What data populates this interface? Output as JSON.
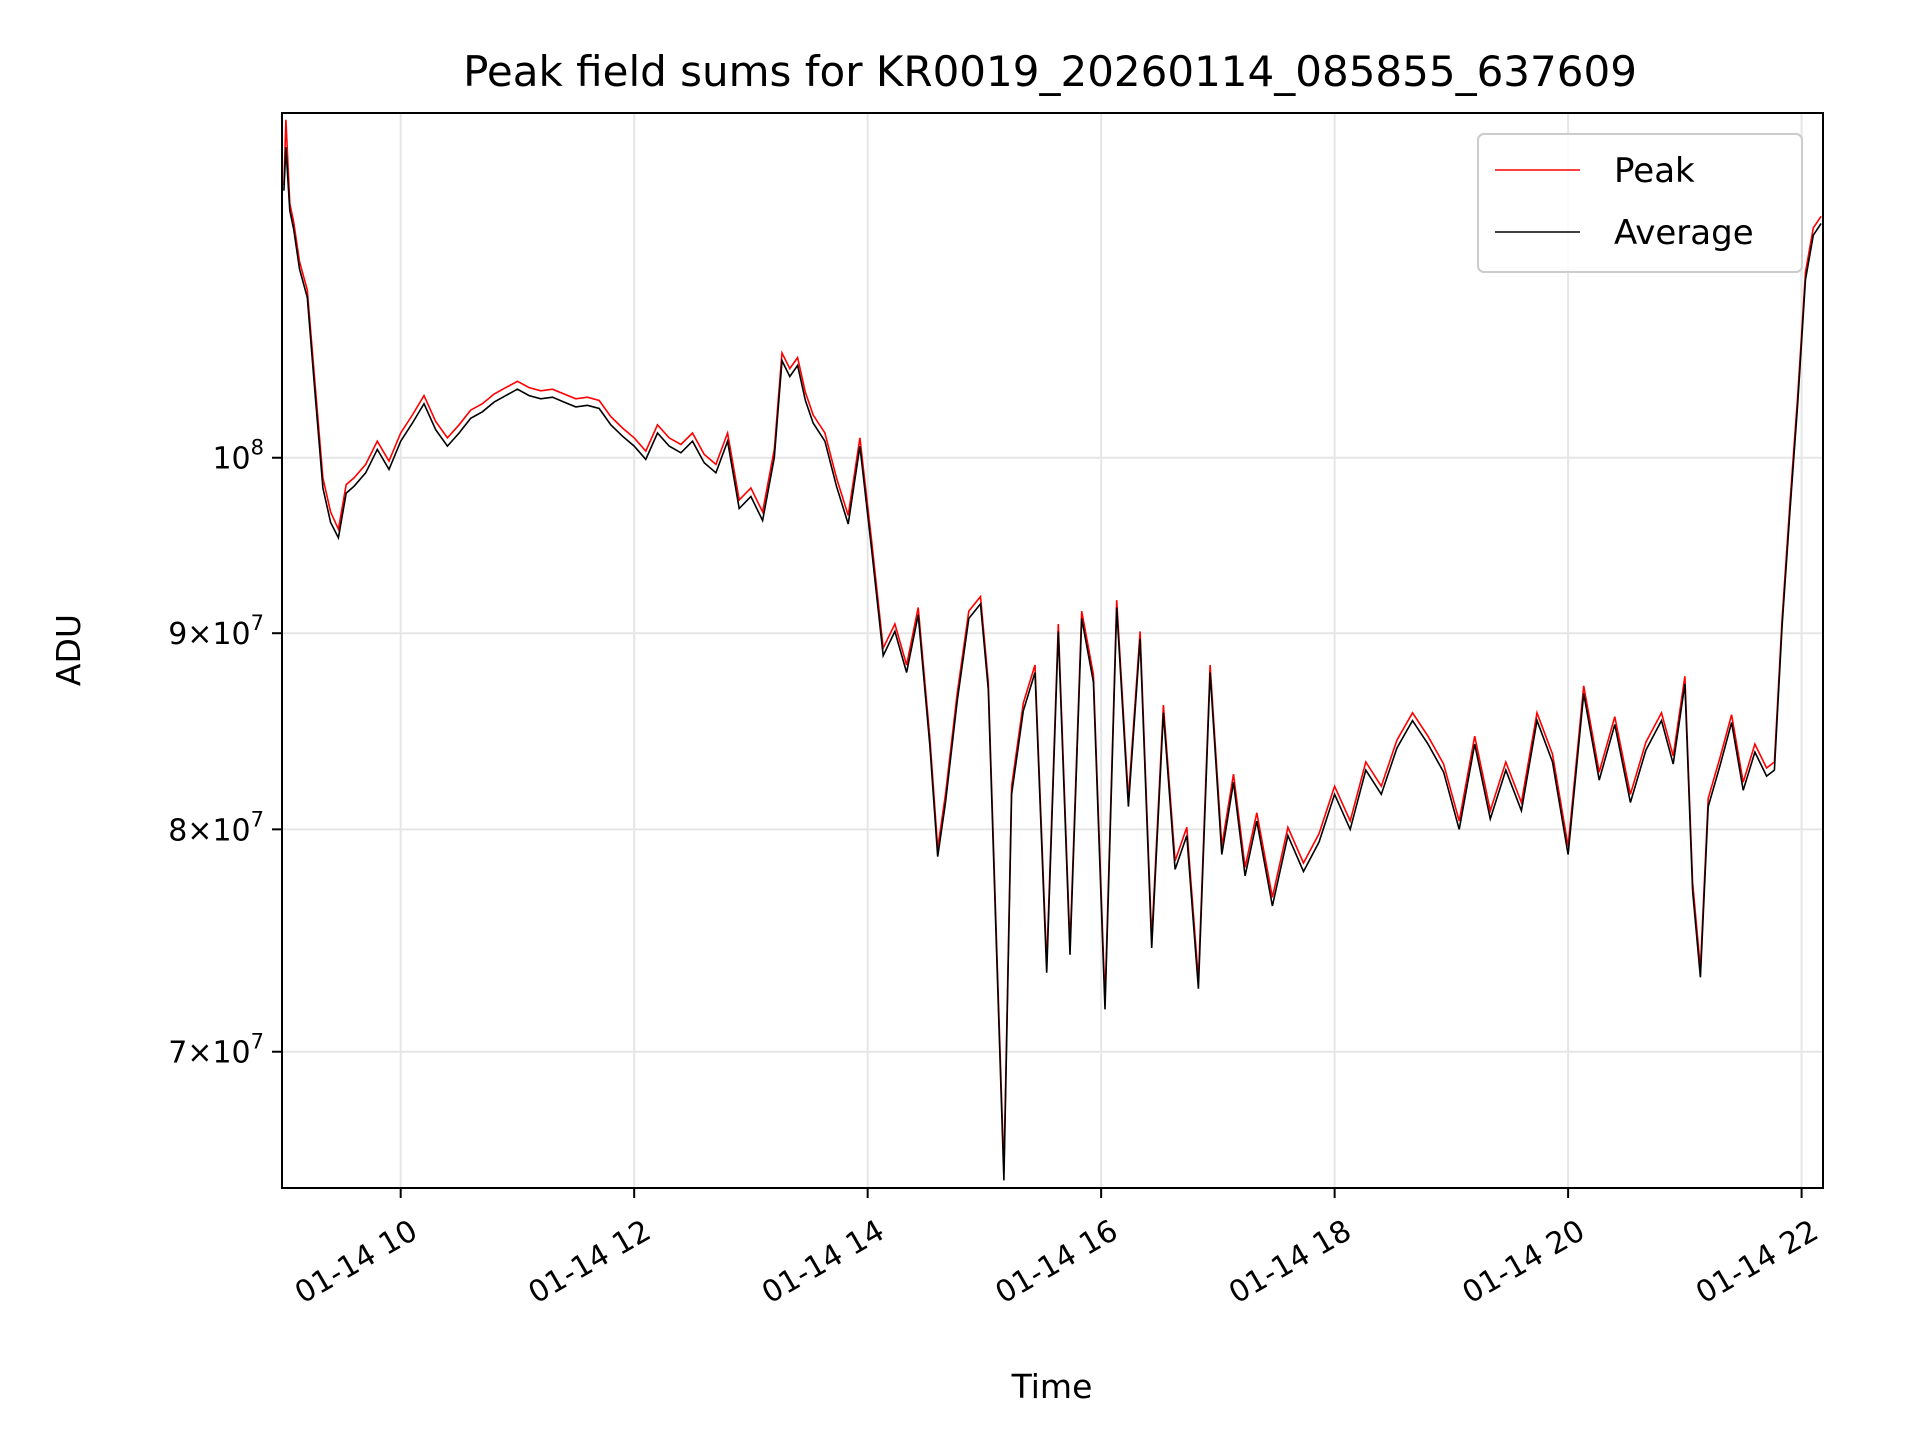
{
  "chart_data": {
    "type": "line",
    "title": "Peak field sums for KR0019_20260114_085855_637609",
    "xlabel": "Time",
    "ylabel": "ADU",
    "yscale": "log",
    "ylim": [
      64500000,
      123000000
    ],
    "xlim": [
      "01-14 08:59",
      "01-14 22:11"
    ],
    "grid": true,
    "legend_position": "top-right",
    "x_ticks": [
      "01-14 10",
      "01-14 12",
      "01-14 14",
      "01-14 16",
      "01-14 18",
      "01-14 20",
      "01-14 22"
    ],
    "y_ticks": [
      {
        "value": 70000000,
        "mantissa": "7",
        "base": "10",
        "exp": "7"
      },
      {
        "value": 80000000,
        "mantissa": "8",
        "base": "10",
        "exp": "7"
      },
      {
        "value": 90000000,
        "mantissa": "9",
        "base": "10",
        "exp": "7"
      },
      {
        "value": 100000000,
        "mantissa": "",
        "base": "10",
        "exp": "8"
      }
    ],
    "series": [
      {
        "name": "Peak",
        "color": "#ff0000"
      },
      {
        "name": "Average",
        "color": "#000000"
      }
    ],
    "x": [
      "01-14 09:00",
      "01-14 09:01",
      "01-14 09:03",
      "01-14 09:05",
      "01-14 09:08",
      "01-14 09:12",
      "01-14 09:16",
      "01-14 09:20",
      "01-14 09:24",
      "01-14 09:28",
      "01-14 09:32",
      "01-14 09:36",
      "01-14 09:42",
      "01-14 09:48",
      "01-14 09:54",
      "01-14 10:00",
      "01-14 10:06",
      "01-14 10:12",
      "01-14 10:18",
      "01-14 10:24",
      "01-14 10:30",
      "01-14 10:36",
      "01-14 10:42",
      "01-14 10:48",
      "01-14 10:54",
      "01-14 11:00",
      "01-14 11:06",
      "01-14 11:12",
      "01-14 11:18",
      "01-14 11:24",
      "01-14 11:30",
      "01-14 11:36",
      "01-14 11:42",
      "01-14 11:48",
      "01-14 11:54",
      "01-14 12:00",
      "01-14 12:06",
      "01-14 12:12",
      "01-14 12:18",
      "01-14 12:24",
      "01-14 12:30",
      "01-14 12:36",
      "01-14 12:42",
      "01-14 12:48",
      "01-14 12:54",
      "01-14 13:00",
      "01-14 13:06",
      "01-14 13:12",
      "01-14 13:16",
      "01-14 13:20",
      "01-14 13:24",
      "01-14 13:28",
      "01-14 13:32",
      "01-14 13:38",
      "01-14 13:44",
      "01-14 13:50",
      "01-14 13:56",
      "01-14 14:02",
      "01-14 14:08",
      "01-14 14:14",
      "01-14 14:20",
      "01-14 14:26",
      "01-14 14:32",
      "01-14 14:36",
      "01-14 14:40",
      "01-14 14:46",
      "01-14 14:52",
      "01-14 14:58",
      "01-14 15:02",
      "01-14 15:06",
      "01-14 15:10",
      "01-14 15:14",
      "01-14 15:20",
      "01-14 15:26",
      "01-14 15:32",
      "01-14 15:38",
      "01-14 15:44",
      "01-14 15:50",
      "01-14 15:56",
      "01-14 16:02",
      "01-14 16:08",
      "01-14 16:14",
      "01-14 16:20",
      "01-14 16:26",
      "01-14 16:32",
      "01-14 16:38",
      "01-14 16:44",
      "01-14 16:50",
      "01-14 16:56",
      "01-14 17:02",
      "01-14 17:08",
      "01-14 17:14",
      "01-14 17:20",
      "01-14 17:28",
      "01-14 17:36",
      "01-14 17:44",
      "01-14 17:52",
      "01-14 18:00",
      "01-14 18:08",
      "01-14 18:16",
      "01-14 18:24",
      "01-14 18:32",
      "01-14 18:40",
      "01-14 18:48",
      "01-14 18:56",
      "01-14 19:04",
      "01-14 19:12",
      "01-14 19:20",
      "01-14 19:28",
      "01-14 19:36",
      "01-14 19:44",
      "01-14 19:52",
      "01-14 20:00",
      "01-14 20:08",
      "01-14 20:16",
      "01-14 20:24",
      "01-14 20:32",
      "01-14 20:40",
      "01-14 20:48",
      "01-14 20:54",
      "01-14 21:00",
      "01-14 21:04",
      "01-14 21:08",
      "01-14 21:12",
      "01-14 21:18",
      "01-14 21:24",
      "01-14 21:30",
      "01-14 21:36",
      "01-14 21:42",
      "01-14 21:46",
      "01-14 21:50",
      "01-14 21:54",
      "01-14 21:58",
      "01-14 22:02",
      "01-14 22:06",
      "01-14 22:10"
    ],
    "peak_values": [
      117800000,
      122500000,
      116500000,
      115200000,
      112500000,
      110600000,
      104500000,
      98800000,
      96800000,
      95800000,
      98400000,
      98800000,
      99600000,
      101000000,
      99800000,
      101500000,
      102600000,
      103800000,
      102200000,
      101200000,
      102000000,
      102900000,
      103300000,
      103900000,
      104300000,
      104700000,
      104300000,
      104100000,
      104200000,
      103900000,
      103600000,
      103700000,
      103500000,
      102500000,
      101800000,
      101200000,
      100400000,
      102000000,
      101200000,
      100800000,
      101500000,
      100200000,
      99600000,
      101500000,
      97500000,
      98200000,
      96800000,
      100500000,
      106500000,
      105500000,
      106200000,
      104000000,
      102600000,
      101500000,
      98800000,
      96600000,
      101200000,
      95200000,
      89200000,
      90500000,
      88300000,
      91400000,
      84500000,
      79100000,
      81700000,
      86800000,
      91200000,
      92000000,
      87400000,
      75400000,
      65200000,
      82100000,
      86300000,
      88300000,
      73800000,
      90500000,
      74600000,
      91200000,
      87800000,
      72200000,
      91800000,
      81500000,
      90100000,
      74900000,
      86200000,
      78500000,
      80100000,
      73100000,
      88300000,
      79200000,
      82700000,
      78200000,
      80800000,
      76800000,
      80100000,
      78400000,
      79800000,
      82100000,
      80400000,
      83300000,
      82100000,
      84400000,
      85800000,
      84600000,
      83200000,
      80400000,
      84600000,
      80900000,
      83300000,
      81300000,
      85800000,
      83700000,
      79200000,
      87200000,
      82800000,
      85600000,
      81700000,
      84300000,
      85800000,
      83600000,
      87700000,
      77500000,
      73600000,
      81500000,
      83500000,
      85700000,
      82300000,
      84200000,
      83000000,
      83300000,
      90800000,
      97300000,
      103800000,
      111800000,
      114800000,
      115600000
    ],
    "average_values": [
      117400000,
      120500000,
      116000000,
      114700000,
      112000000,
      110100000,
      103900000,
      98200000,
      96200000,
      95300000,
      97900000,
      98300000,
      99100000,
      100500000,
      99300000,
      101000000,
      102100000,
      103300000,
      101700000,
      100700000,
      101500000,
      102400000,
      102800000,
      103400000,
      103800000,
      104200000,
      103800000,
      103600000,
      103700000,
      103400000,
      103100000,
      103200000,
      103000000,
      102000000,
      101300000,
      100700000,
      99900000,
      101500000,
      100700000,
      100300000,
      101000000,
      99700000,
      99100000,
      101000000,
      97000000,
      97700000,
      96300000,
      100000000,
      106000000,
      105000000,
      105700000,
      103500000,
      102100000,
      101000000,
      98300000,
      96100000,
      100700000,
      94700000,
      88800000,
      90100000,
      87900000,
      91000000,
      84100000,
      78700000,
      81300000,
      86400000,
      90800000,
      91600000,
      87000000,
      75000000,
      64800000,
      81700000,
      85900000,
      87900000,
      73400000,
      90100000,
      74200000,
      90800000,
      87400000,
      71800000,
      91400000,
      81100000,
      89700000,
      74500000,
      85800000,
      78100000,
      79700000,
      72700000,
      87900000,
      78800000,
      82300000,
      77800000,
      80400000,
      76400000,
      79700000,
      78000000,
      79400000,
      81700000,
      80000000,
      82900000,
      81700000,
      84000000,
      85400000,
      84200000,
      82800000,
      80000000,
      84200000,
      80500000,
      82900000,
      80900000,
      85400000,
      83300000,
      78800000,
      86800000,
      82400000,
      85200000,
      81300000,
      83900000,
      85400000,
      83200000,
      87300000,
      77100000,
      73200000,
      81100000,
      83100000,
      85300000,
      81900000,
      83800000,
      82600000,
      82900000,
      90400000,
      96800000,
      103300000,
      111300000,
      114300000,
      115100000
    ]
  }
}
